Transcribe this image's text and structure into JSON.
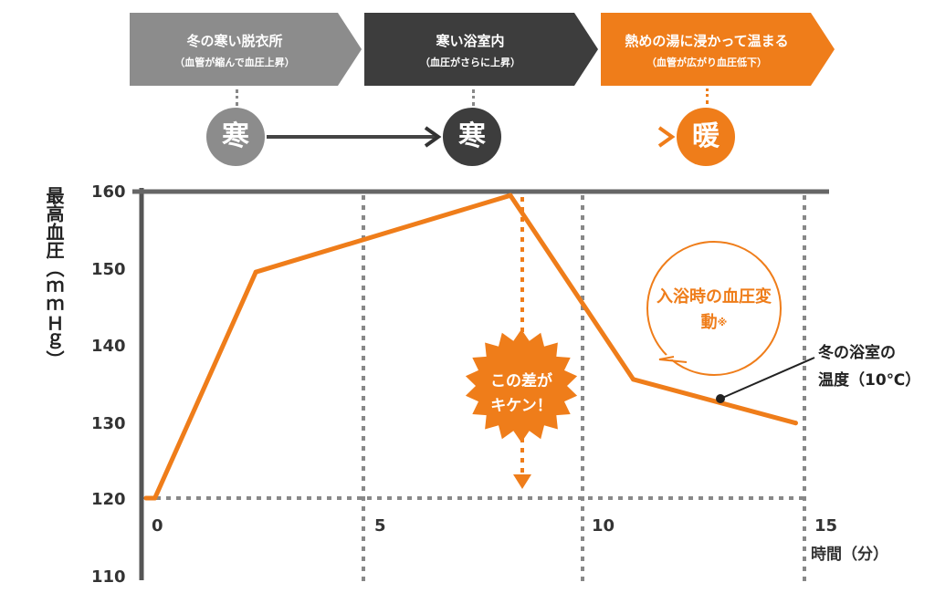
{
  "steps": [
    {
      "title": "冬の寒い脱衣所",
      "sub": "（血管が縮んで血圧上昇）",
      "color": "#8c8c8c"
    },
    {
      "title": "寒い浴室内",
      "sub": "（血圧がさらに上昇）",
      "color": "#3d3d3d"
    },
    {
      "title": "熱めの湯に浸かって温まる",
      "sub": "（血管が広がり血圧低下）",
      "color": "#ef7d1a"
    }
  ],
  "states": [
    {
      "label": "寒",
      "color": "#8c8c8c"
    },
    {
      "label": "寒",
      "color": "#3d3d3d"
    },
    {
      "label": "暖",
      "color": "#ef7d1a"
    }
  ],
  "chart_data": {
    "type": "line",
    "ylabel": "最高血圧（ｍｍＨｇ）",
    "xlabel": "時間（分）",
    "xlim": [
      0,
      15
    ],
    "ylim": [
      110,
      160
    ],
    "x_ticks": [
      "0",
      "5",
      "10",
      "15"
    ],
    "y_ticks": [
      "160",
      "150",
      "140",
      "130",
      "120",
      "110"
    ],
    "series": [
      {
        "x": [
          0,
          0.2,
          2.5,
          8.3,
          11.1,
          14.8
        ],
        "values": [
          120,
          120,
          149.5,
          159.5,
          135.5,
          129.8
        ],
        "color": "#ef7d1a"
      }
    ],
    "annotations": {
      "bubble": "入浴時の血圧変動",
      "bubble_mark": "※",
      "burst": [
        "この差が",
        "キケン！"
      ],
      "point_label": [
        "冬の浴室の",
        "温度（10℃）"
      ]
    }
  }
}
